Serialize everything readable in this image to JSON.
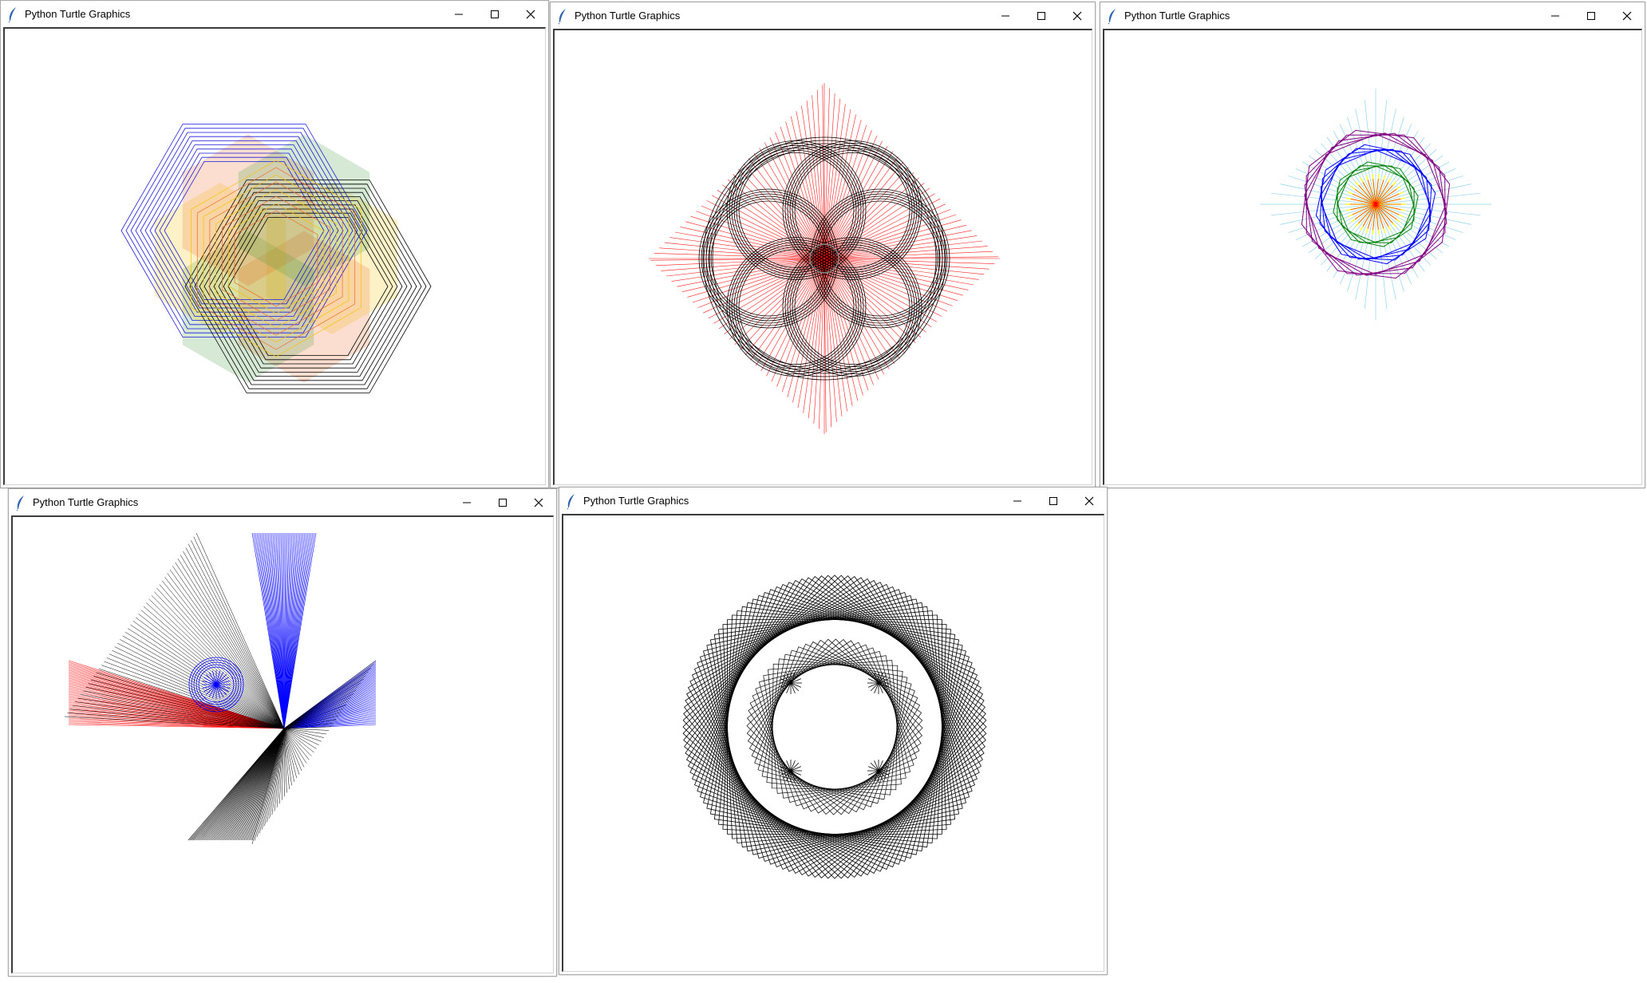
{
  "windows": [
    {
      "title": "Python Turtle Graphics",
      "drawing": "hexagon-star-pattern",
      "colors": [
        "#1a1adc",
        "#000000",
        "#f5c400",
        "#ef6a2a",
        "#3f9c3f"
      ]
    },
    {
      "title": "Python Turtle Graphics",
      "drawing": "rosette-diamond-pattern",
      "colors": [
        "#ff0000",
        "#000000"
      ]
    },
    {
      "title": "Python Turtle Graphics",
      "drawing": "rotating-polygon-pattern",
      "colors": [
        "#8fd3ef",
        "#800080",
        "#0000ff",
        "#008000",
        "#ffff00",
        "#ff0000"
      ]
    },
    {
      "title": "Python Turtle Graphics",
      "drawing": "pinwheel-pattern",
      "colors": [
        "#000000",
        "#0000ff",
        "#ff0000"
      ]
    },
    {
      "title": "Python Turtle Graphics",
      "drawing": "squares-spirograph-pattern",
      "colors": [
        "#000000"
      ]
    }
  ],
  "icons": {
    "app": "feather-icon",
    "minimize": "minimize-icon",
    "maximize": "maximize-icon",
    "close": "close-icon"
  }
}
